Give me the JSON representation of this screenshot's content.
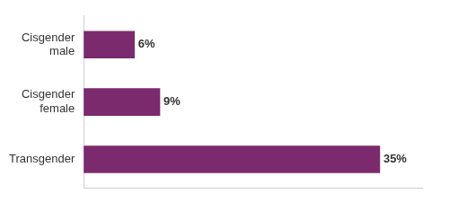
{
  "chart_data": {
    "type": "bar",
    "orientation": "horizontal",
    "categories": [
      "Cisgender male",
      "Cisgender female",
      "Transgender"
    ],
    "values": [
      6,
      9,
      35
    ],
    "value_labels": [
      "6%",
      "9%",
      "35%"
    ],
    "color": "#7b2a6e",
    "xlim": [
      0,
      40
    ],
    "xticks": [],
    "grid": false,
    "data_labels": true,
    "tick_labels": "y"
  }
}
